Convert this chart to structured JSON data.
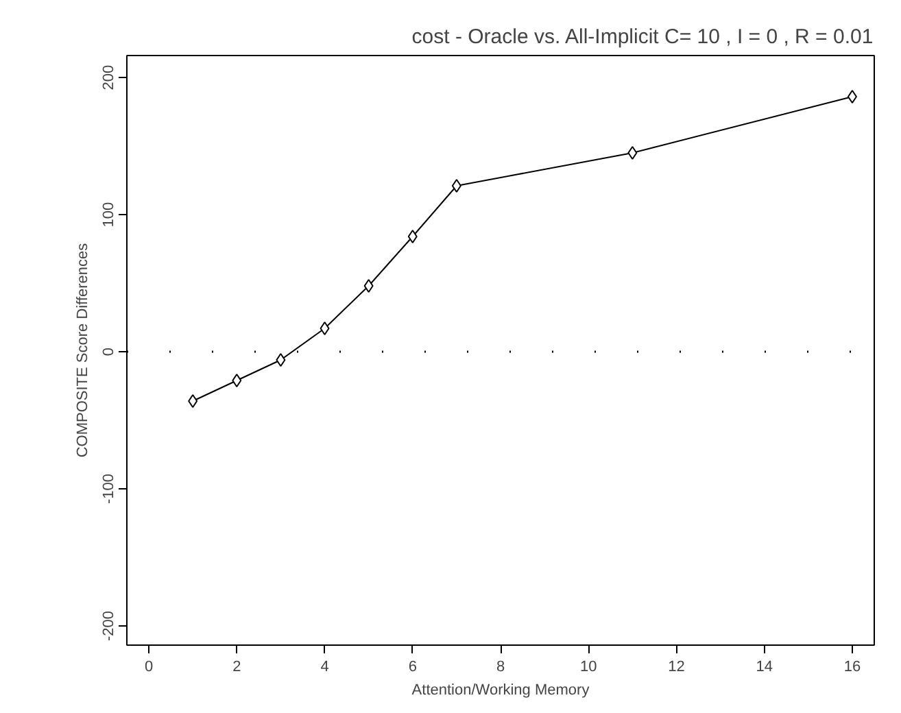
{
  "chart_data": {
    "type": "line",
    "title": "cost - Oracle vs. All-Implicit C= 10 , I = 0 , R = 0.01",
    "xlabel": "Attention/Working Memory",
    "ylabel": "COMPOSITE Score Differences",
    "x": [
      1,
      2,
      3,
      4,
      5,
      6,
      7,
      11,
      16
    ],
    "series": [
      {
        "color": "#000000",
        "values": [
          -36,
          -21,
          -6,
          17,
          48,
          84,
          121,
          145,
          186
        ]
      }
    ],
    "xlim": [
      -0.5,
      16.5
    ],
    "ylim": [
      -214,
      216
    ],
    "xticks": [
      0,
      2,
      4,
      6,
      8,
      10,
      12,
      14,
      16
    ],
    "yticks": [
      {
        "value": -200,
        "label": "-200"
      },
      {
        "value": -100,
        "label": "-100"
      },
      0,
      100,
      200
    ],
    "ref_lines": [
      {
        "axis": "y",
        "value": 0,
        "line_style": "dotted",
        "color": "#000000"
      }
    ],
    "marker": "diamond",
    "line_style": "solid",
    "grid": false
  }
}
